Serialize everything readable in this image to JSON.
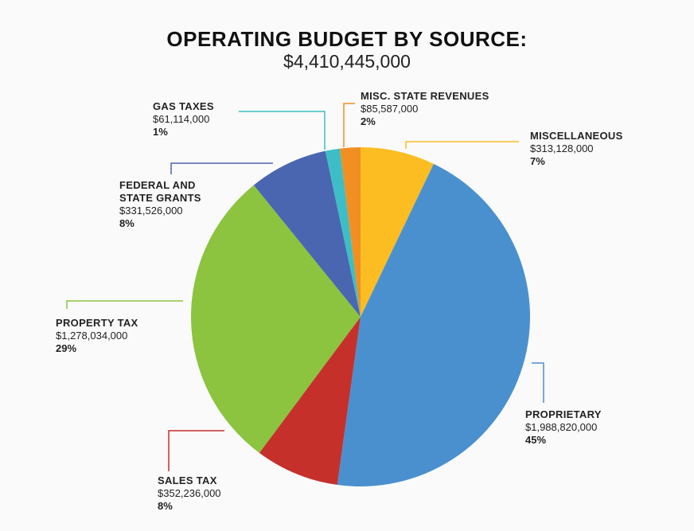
{
  "chart_data": {
    "type": "pie",
    "title": "OPERATING BUDGET BY SOURCE:",
    "subtitle": "$4,410,445,000",
    "categories": [
      "MISCELLANEOUS",
      "PROPRIETARY",
      "SALES TAX",
      "PROPERTY TAX",
      "FEDERAL AND STATE GRANTS",
      "GAS TAXES",
      "MISC. STATE REVENUES"
    ],
    "values": [
      313128000,
      1988820000,
      352236000,
      1278034000,
      331526000,
      61114000,
      85587000
    ],
    "value_labels": [
      "$313,128,000",
      "$1,988,820,000",
      "$352,236,000",
      "$1,278,034,000",
      "$331,526,000",
      "$61,114,000",
      "$85,587,000"
    ],
    "percent_labels": [
      "7%",
      "45%",
      "8%",
      "29%",
      "8%",
      "1%",
      "2%"
    ],
    "colors": [
      "#fbbd22",
      "#4a90cf",
      "#c5302b",
      "#8cc33f",
      "#4a66b0",
      "#3dbec6",
      "#f28f22"
    ]
  }
}
